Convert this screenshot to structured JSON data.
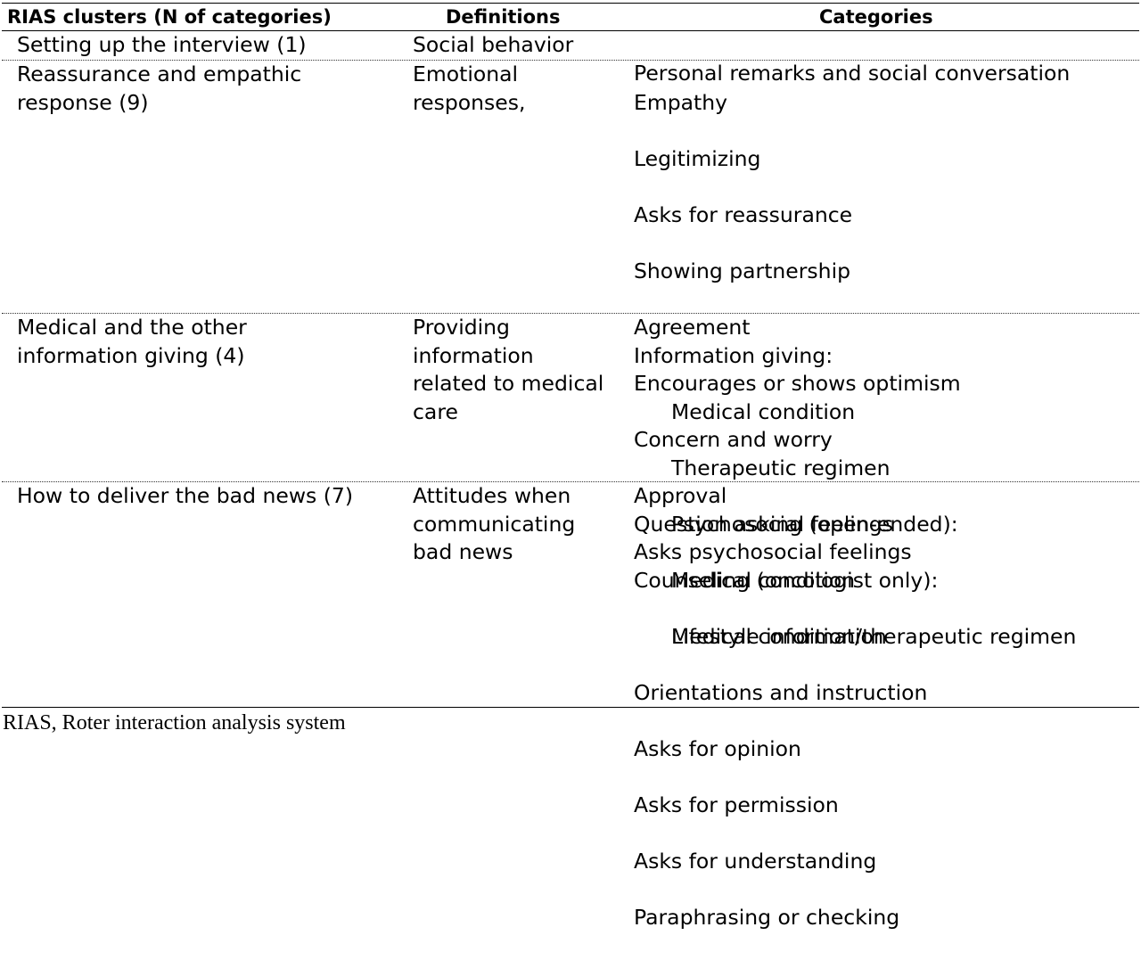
{
  "table": {
    "headers": {
      "clusters": "RIAS clusters (N of categories)",
      "definitions": "Definitions",
      "categories": "Categories"
    },
    "rows": [
      {
        "cluster": "Setting up the interview (1)",
        "definition": "Social behavior",
        "categories": [
          "Personal remarks and social conversation"
        ]
      },
      {
        "cluster": "Reassurance and empathic\nresponse (9)",
        "definition": "Emotional\nresponses,",
        "categories": [
          "Empathy",
          "Legitimizing",
          "Asks for reassurance",
          "Showing partnership",
          "Agreement",
          "Encourages or shows optimism",
          "Concern and worry",
          "Approval",
          "Asks psychosocial feelings"
        ]
      },
      {
        "cluster": "Medical and the other\ninformation giving (4)",
        "definition": "Providing\ninformation\nrelated to medical\ncare",
        "categories": [
          "Information giving:",
          "Medical condition",
          "Therapeutic regimen",
          "Psychosocial feelings",
          "Counseling (oncologist only):",
          "Medical condition/therapeutic regimen"
        ]
      },
      {
        "cluster": "How to deliver the bad news (7)",
        "definition": "Attitudes when\ncommunicating\nbad news",
        "categories": [
          "Question asking (open-ended):",
          "Medical condition",
          "Lifestyle information",
          "Orientations and instruction",
          "Asks for opinion",
          "Asks for permission",
          "Asks for understanding",
          "Paraphrasing or checking"
        ]
      }
    ]
  },
  "footnote": "RIAS, Roter interaction analysis system"
}
